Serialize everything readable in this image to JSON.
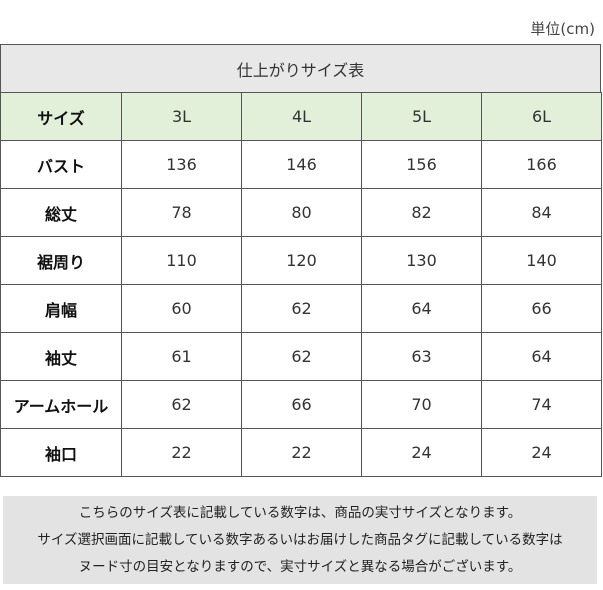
{
  "unit": "単位(cm)",
  "table": {
    "title": "仕上がりサイズ表",
    "header": [
      "サイズ",
      "3L",
      "4L",
      "5L",
      "6L"
    ],
    "rows": [
      {
        "label": "バスト",
        "values": [
          136,
          146,
          156,
          166
        ]
      },
      {
        "label": "総丈",
        "values": [
          78,
          80,
          82,
          84
        ]
      },
      {
        "label": "裾周り",
        "values": [
          110,
          120,
          130,
          140
        ]
      },
      {
        "label": "肩幅",
        "values": [
          60,
          62,
          64,
          66
        ]
      },
      {
        "label": "袖丈",
        "values": [
          61,
          62,
          63,
          64
        ]
      },
      {
        "label": "アームホール",
        "values": [
          62,
          66,
          70,
          74
        ]
      },
      {
        "label": "袖口",
        "values": [
          22,
          22,
          24,
          24
        ]
      }
    ]
  },
  "note": {
    "lines": [
      "こちらのサイズ表に記載している数字は、商品の実寸サイズとなります。",
      "サイズ選択画面に記載している数字あるいはお届けした商品タグに記載している数字は",
      "ヌード寸の目安となりますので、実寸サイズと異なる場合がございます。"
    ]
  }
}
